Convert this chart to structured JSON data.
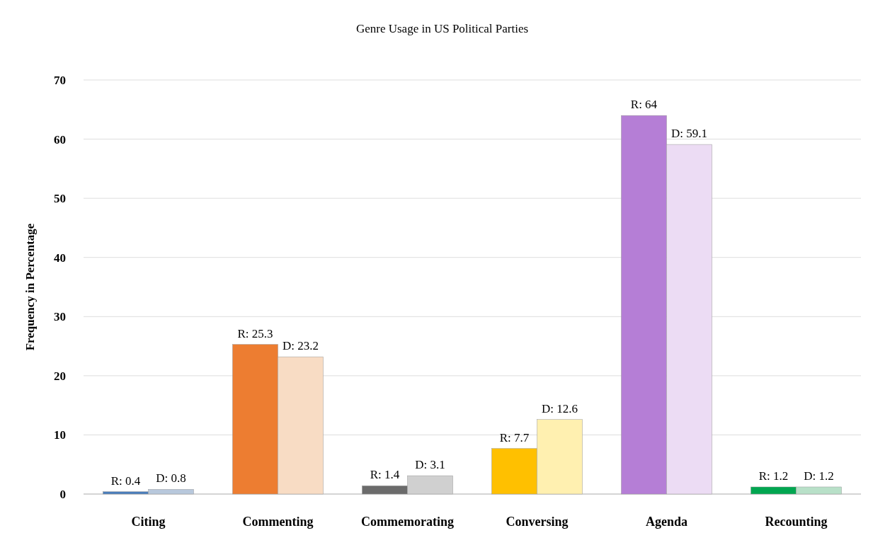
{
  "chart_data": {
    "type": "bar",
    "title": "Genre Usage in US Political Parties",
    "ylabel": "Frequency in Percentage",
    "categories": [
      "Citing",
      "Commenting",
      "Commemorating",
      "Conversing",
      "Agenda",
      "Recounting"
    ],
    "series": [
      {
        "colors": [
          "#4a7ebb",
          "#ed7d31",
          "#6b6b6b",
          "#ffc000",
          "#b57ed6",
          "#00a650"
        ],
        "values": [
          0.4,
          25.3,
          1.4,
          7.7,
          64,
          1.2
        ],
        "value_labels": [
          "R: 0.4",
          "R: 25.3",
          "R: 1.4",
          "R: 7.7",
          "R: 64",
          "R: 1.2"
        ]
      },
      {
        "colors": [
          "#b8c8dc",
          "#f8dcc4",
          "#d0d0d0",
          "#fff0b0",
          "#ecdcf4",
          "#b8e0c8"
        ],
        "values": [
          0.8,
          23.2,
          3.1,
          12.6,
          59.1,
          1.2
        ],
        "value_labels": [
          "D: 0.8",
          "D: 23.2",
          "D: 3.1",
          "D: 12.6",
          "D: 59.1",
          "D: 1.2"
        ]
      }
    ],
    "ylim": [
      0,
      70
    ],
    "yticks": [
      0,
      10,
      20,
      30,
      40,
      50,
      60,
      70
    ],
    "grid": "y"
  }
}
